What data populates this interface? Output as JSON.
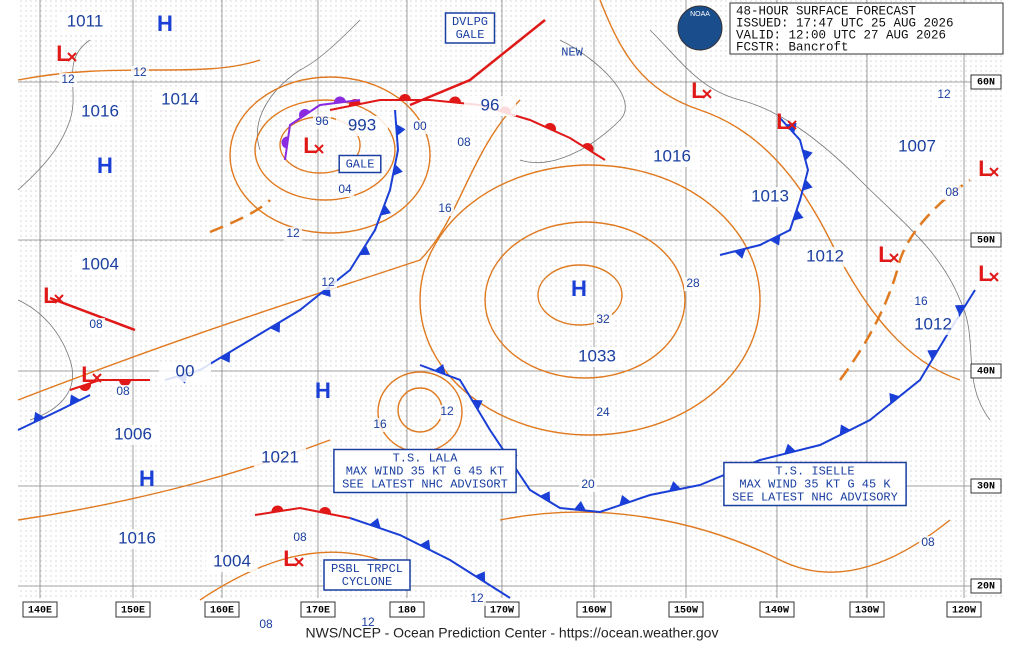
{
  "header": {
    "lines": [
      "48-HOUR SURFACE FORECAST",
      "ISSUED: 17:47 UTC 25 AUG 2026",
      "VALID:  12:00 UTC 27 AUG 2026",
      "FCSTR:  Bancroft"
    ]
  },
  "logo": "NOAA",
  "footer": "NWS/NCEP - Ocean Prediction Center - https://ocean.weather.gov",
  "longitude_labels": [
    "140E",
    "150E",
    "160E",
    "170E",
    "180",
    "170W",
    "160W",
    "150W",
    "140W",
    "130W",
    "120W"
  ],
  "latitude_labels": [
    "60N",
    "50N",
    "40N",
    "30N",
    "20N"
  ],
  "pressure_labels": [
    "1011",
    "1016",
    "1014",
    "993",
    "96",
    "1016",
    "1007",
    "1013",
    "1012",
    "1012",
    "1004",
    "1033",
    "00",
    "1006",
    "1021",
    "1016",
    "1004"
  ],
  "highs": [
    "H",
    "H",
    "H",
    "H",
    "H"
  ],
  "lows": [
    "L",
    "L",
    "L",
    "L",
    "L",
    "L",
    "L",
    "L",
    "L",
    "L"
  ],
  "isobar_labels": [
    "12",
    "12",
    "96",
    "00",
    "08",
    "04",
    "16",
    "12",
    "12",
    "28",
    "32",
    "24",
    "20",
    "16",
    "12",
    "08",
    "08",
    "08",
    "16",
    "12",
    "08",
    "08",
    "12",
    "12",
    "08"
  ],
  "annotations": [
    {
      "lines": [
        "DVLPG",
        "GALE"
      ]
    },
    {
      "lines": [
        "GALE"
      ]
    },
    {
      "lines": [
        "NEW"
      ]
    },
    {
      "lines": [
        "T.S. LALA",
        "MAX WIND 35 KT G 45 KT",
        "SEE LATEST NHC ADVISORT"
      ]
    },
    {
      "lines": [
        "T.S. ISELLE",
        "MAX WIND 35 KT G 45 K",
        "SEE LATEST NHC ADVISORY"
      ]
    },
    {
      "lines": [
        "PSBL TRPCL",
        "CYCLONE"
      ]
    }
  ]
}
